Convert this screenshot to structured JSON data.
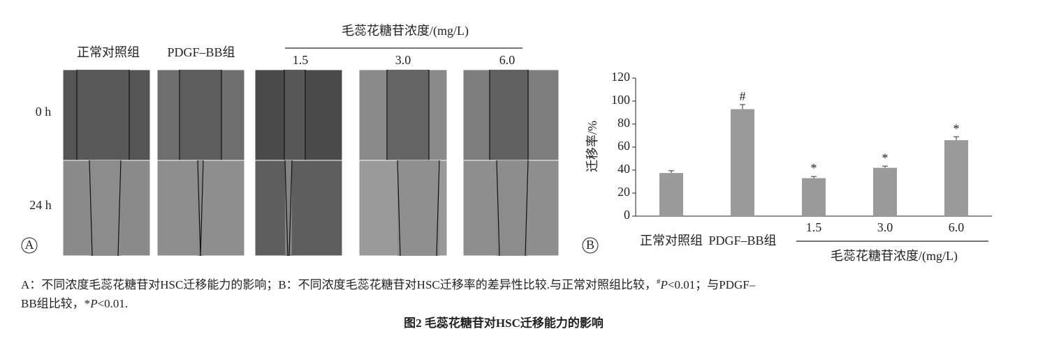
{
  "panel_a": {
    "label": "A",
    "group_header": "毛蕊花糖苷浓度/(mg/L)",
    "columns": [
      "正常对照组",
      "PDGF–BB组",
      "1.5",
      "3.0",
      "6.0"
    ],
    "rows": [
      "0 h",
      "24 h"
    ]
  },
  "chart_data": {
    "type": "bar",
    "panel_label": "B",
    "y_label": "迁移率/%",
    "group_label": "毛蕊花糖苷浓度/(mg/L)",
    "categories": [
      "正常对照组",
      "PDGF–BB组",
      "1.5",
      "3.0",
      "6.0"
    ],
    "values": [
      37.5,
      93,
      33,
      42,
      66
    ],
    "errors": [
      2,
      4,
      1.5,
      1.5,
      3
    ],
    "markers": [
      null,
      "#",
      "*",
      "*",
      "*"
    ],
    "color": "#9a9a9a",
    "ylim": [
      0,
      120
    ],
    "yticks": [
      0,
      20,
      40,
      60,
      80,
      100,
      120
    ]
  },
  "caption": {
    "line1": [
      "A：不同浓度毛蕊花糖苷对HSC迁移能力的影响；B：不同浓度毛蕊花糖苷对HSC迁移率的差异性比较.与正常对照组比较，",
      "#",
      "P",
      "<0.01；与PDGF–"
    ],
    "line2": [
      "BB组比较，*",
      "P",
      "<0.01."
    ],
    "title": "图2  毛蕊花糖苷对HSC迁移能力的影响"
  }
}
